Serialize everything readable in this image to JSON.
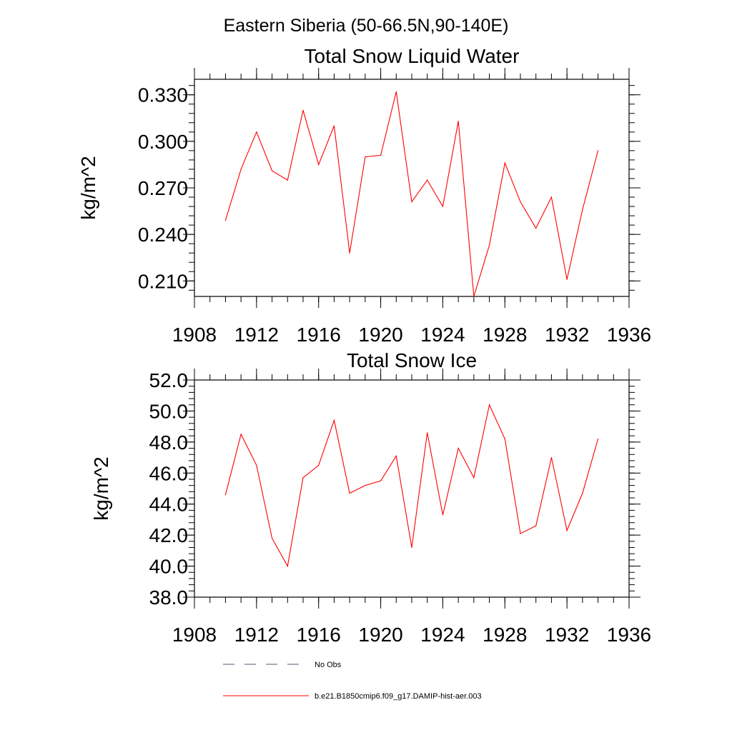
{
  "figure_title": "Eastern Siberia (50-66.5N,90-140E)",
  "colors": {
    "model": "#ff0000",
    "obs": "#555577",
    "axis": "#000000"
  },
  "chart_data": [
    {
      "type": "line",
      "title": "Total Snow Liquid Water",
      "xlabel": "",
      "ylabel": "kg/m^2",
      "xlim": [
        1908,
        1936
      ],
      "ylim": [
        0.2,
        0.34
      ],
      "x_ticks": [
        "1908",
        "1912",
        "1916",
        "1920",
        "1924",
        "1928",
        "1932",
        "1936"
      ],
      "y_ticks": [
        "0.210",
        "0.240",
        "0.270",
        "0.300",
        "0.330"
      ],
      "y_tick_values": [
        0.21,
        0.24,
        0.27,
        0.3,
        0.33
      ],
      "y_minor_step": 0.006,
      "x_minor_step": 1,
      "grid": false,
      "series": [
        {
          "name": "b.e21.B1850cmip6.f09_g17.DAMIP-hist-aer.003",
          "x": [
            1910,
            1911,
            1912,
            1913,
            1914,
            1915,
            1916,
            1917,
            1918,
            1919,
            1920,
            1921,
            1922,
            1923,
            1924,
            1925,
            1926,
            1927,
            1928,
            1929,
            1930,
            1931,
            1932,
            1933,
            1934
          ],
          "values": [
            0.249,
            0.282,
            0.306,
            0.281,
            0.275,
            0.32,
            0.285,
            0.31,
            0.228,
            0.29,
            0.291,
            0.332,
            0.261,
            0.275,
            0.258,
            0.313,
            0.2,
            0.233,
            0.286,
            0.261,
            0.244,
            0.264,
            0.211,
            0.256,
            0.294
          ]
        }
      ]
    },
    {
      "type": "line",
      "title": "Total Snow Ice",
      "xlabel": "",
      "ylabel": "kg/m^2",
      "xlim": [
        1908,
        1936
      ],
      "ylim": [
        38.0,
        52.0
      ],
      "x_ticks": [
        "1908",
        "1912",
        "1916",
        "1920",
        "1924",
        "1928",
        "1932",
        "1936"
      ],
      "y_ticks": [
        "38.0",
        "40.0",
        "42.0",
        "44.0",
        "46.0",
        "48.0",
        "50.0",
        "52.0"
      ],
      "y_tick_values": [
        38,
        40,
        42,
        44,
        46,
        48,
        50,
        52
      ],
      "y_minor_step": 0.4,
      "x_minor_step": 1,
      "grid": false,
      "series": [
        {
          "name": "b.e21.B1850cmip6.f09_g17.DAMIP-hist-aer.003",
          "x": [
            1910,
            1911,
            1912,
            1913,
            1914,
            1915,
            1916,
            1917,
            1918,
            1919,
            1920,
            1921,
            1922,
            1923,
            1924,
            1925,
            1926,
            1927,
            1928,
            1929,
            1930,
            1931,
            1932,
            1933,
            1934
          ],
          "values": [
            44.6,
            48.5,
            46.5,
            41.8,
            40.0,
            45.7,
            46.5,
            49.4,
            44.7,
            45.2,
            45.5,
            47.1,
            41.2,
            48.6,
            43.3,
            47.6,
            45.7,
            50.4,
            48.2,
            42.1,
            42.6,
            47.0,
            42.3,
            44.7,
            48.2
          ]
        }
      ]
    }
  ],
  "legend": {
    "position": "bottom",
    "entries": [
      {
        "label": "No Obs",
        "style": "dashed",
        "color": "#555577"
      },
      {
        "label": "b.e21.B1850cmip6.f09_g17.DAMIP-hist-aer.003",
        "style": "solid",
        "color": "#ff0000"
      }
    ]
  }
}
